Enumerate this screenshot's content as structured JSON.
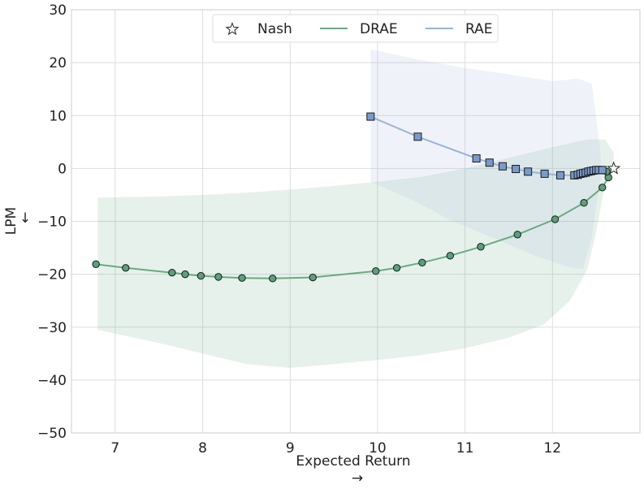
{
  "chart_data": {
    "type": "line",
    "title": "",
    "xlabel": "Expected Return",
    "xlabel_arrow": "→",
    "ylabel": "LPM",
    "ylabel_arrow": "↓",
    "xlim": [
      6.5,
      13.0
    ],
    "ylim": [
      -50,
      30
    ],
    "xticks": [
      7,
      8,
      9,
      10,
      11,
      12
    ],
    "yticks": [
      30,
      20,
      10,
      0,
      -10,
      -20,
      -30,
      -40,
      -50
    ],
    "xtick_labels": [
      "7",
      "8",
      "9",
      "10",
      "11",
      "12"
    ],
    "ytick_labels": [
      "30",
      "20",
      "10",
      "0",
      "−10",
      "−20",
      "−30",
      "−40",
      "−50"
    ],
    "grid": true,
    "legend_position": "top-center",
    "series": [
      {
        "name": "DRAE",
        "color": "#6aaa84",
        "marker": "circle",
        "marker_fill": "#5aa07a",
        "x": [
          6.78,
          7.12,
          7.65,
          7.8,
          7.98,
          8.18,
          8.45,
          8.8,
          9.26,
          9.98,
          10.22,
          10.51,
          10.83,
          11.18,
          11.6,
          12.03,
          12.36,
          12.57,
          12.64,
          12.62,
          12.57
        ],
        "y": [
          -18.1,
          -18.8,
          -19.7,
          -20.0,
          -20.3,
          -20.5,
          -20.7,
          -20.8,
          -20.6,
          -19.4,
          -18.8,
          -17.8,
          -16.5,
          -14.8,
          -12.5,
          -9.6,
          -6.5,
          -3.6,
          -1.7,
          -0.6,
          -0.4
        ],
        "band_upper": [
          [
            6.8,
            -5.5
          ],
          [
            7.5,
            -5.3
          ],
          [
            8.0,
            -5.0
          ],
          [
            8.5,
            -4.6
          ],
          [
            9.0,
            -4.0
          ],
          [
            9.5,
            -3.3
          ],
          [
            10.0,
            -2.5
          ],
          [
            10.5,
            -1.6
          ],
          [
            11.0,
            0.0
          ],
          [
            11.5,
            2.0
          ],
          [
            12.0,
            4.0
          ],
          [
            12.4,
            5.5
          ],
          [
            12.6,
            5.5
          ],
          [
            12.7,
            3.0
          ]
        ],
        "band_lower": [
          [
            12.7,
            1.0
          ],
          [
            12.6,
            -3.0
          ],
          [
            12.5,
            -12.0
          ],
          [
            12.4,
            -19.0
          ],
          [
            12.2,
            -25.0
          ],
          [
            11.9,
            -29.5
          ],
          [
            11.5,
            -32.0
          ],
          [
            11.0,
            -34.0
          ],
          [
            10.5,
            -35.3
          ],
          [
            10.0,
            -36.2
          ],
          [
            9.5,
            -37.0
          ],
          [
            9.0,
            -37.7
          ],
          [
            8.5,
            -37.0
          ],
          [
            8.0,
            -35.0
          ],
          [
            7.5,
            -33.0
          ],
          [
            6.8,
            -30.5
          ]
        ]
      },
      {
        "name": "RAE",
        "color": "#9bb4d8",
        "marker": "square",
        "marker_fill": "#7b9acb",
        "x": [
          9.92,
          10.46,
          11.13,
          11.28,
          11.43,
          11.58,
          11.72,
          11.91,
          12.09,
          12.25,
          12.29,
          12.32,
          12.35,
          12.38,
          12.41,
          12.44,
          12.47,
          12.5,
          12.53,
          12.57
        ],
        "y": [
          9.8,
          6.0,
          1.9,
          1.1,
          0.4,
          -0.1,
          -0.6,
          -1.0,
          -1.3,
          -1.3,
          -1.2,
          -1.0,
          -0.9,
          -0.8,
          -0.6,
          -0.5,
          -0.4,
          -0.3,
          -0.3,
          -0.3
        ],
        "band_upper": [
          [
            9.92,
            22.5
          ],
          [
            10.5,
            20.5
          ],
          [
            11.0,
            19.0
          ],
          [
            11.5,
            17.8
          ],
          [
            12.0,
            16.5
          ],
          [
            12.3,
            17.0
          ],
          [
            12.45,
            16.0
          ],
          [
            12.55,
            3.0
          ]
        ],
        "band_lower": [
          [
            12.55,
            -2.0
          ],
          [
            12.5,
            -7.0
          ],
          [
            12.45,
            -13.0
          ],
          [
            12.35,
            -19.0
          ],
          [
            12.2,
            -18.7
          ],
          [
            11.8,
            -16.5
          ],
          [
            11.3,
            -13.0
          ],
          [
            10.8,
            -9.5
          ],
          [
            10.4,
            -6.0
          ],
          [
            9.92,
            -2.5
          ]
        ]
      }
    ],
    "nash": {
      "name": "Nash",
      "x": 12.7,
      "y": 0.0,
      "marker": "star"
    }
  },
  "legend": {
    "items": [
      {
        "label": "Nash",
        "symbol": "star"
      },
      {
        "label": "DRAE",
        "symbol": "line",
        "color": "#6aaa84"
      },
      {
        "label": "RAE",
        "symbol": "line",
        "color": "#9bb4d8"
      }
    ]
  }
}
